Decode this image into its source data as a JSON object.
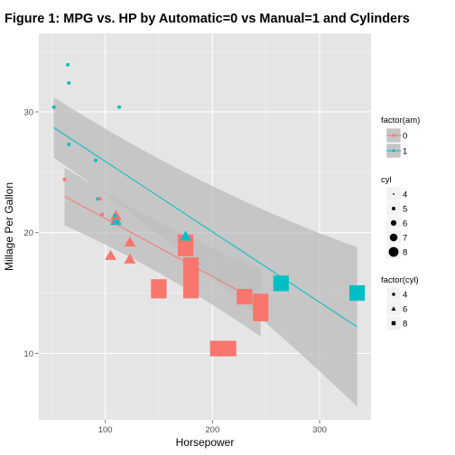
{
  "chart_data": {
    "type": "scatter",
    "title": "Figure 1: MPG vs. HP by Automatic=0 vs Manual=1 and Cylinders",
    "xlabel": "Horsepower",
    "ylabel": "Millage Per Gallon",
    "xlim": [
      38,
      348
    ],
    "ylim": [
      4.5,
      36.5
    ],
    "xticks": [
      100,
      200,
      300
    ],
    "yticks": [
      10,
      20,
      30
    ],
    "grid": true,
    "colors": {
      "am0": "#f8766d",
      "am1": "#00bfc4",
      "panel": "#e5e5e5",
      "band": "#bebebe"
    },
    "points": [
      {
        "hp": 110,
        "mpg": 21.0,
        "cyl": 6,
        "am": 1
      },
      {
        "hp": 110,
        "mpg": 21.0,
        "cyl": 6,
        "am": 1
      },
      {
        "hp": 93,
        "mpg": 22.8,
        "cyl": 4,
        "am": 1
      },
      {
        "hp": 110,
        "mpg": 21.4,
        "cyl": 6,
        "am": 0
      },
      {
        "hp": 175,
        "mpg": 18.7,
        "cyl": 8,
        "am": 0
      },
      {
        "hp": 105,
        "mpg": 18.1,
        "cyl": 6,
        "am": 0
      },
      {
        "hp": 245,
        "mpg": 14.3,
        "cyl": 8,
        "am": 0
      },
      {
        "hp": 62,
        "mpg": 24.4,
        "cyl": 4,
        "am": 0
      },
      {
        "hp": 95,
        "mpg": 22.8,
        "cyl": 4,
        "am": 0
      },
      {
        "hp": 123,
        "mpg": 19.2,
        "cyl": 6,
        "am": 0
      },
      {
        "hp": 123,
        "mpg": 17.8,
        "cyl": 6,
        "am": 0
      },
      {
        "hp": 180,
        "mpg": 16.4,
        "cyl": 8,
        "am": 0
      },
      {
        "hp": 180,
        "mpg": 17.3,
        "cyl": 8,
        "am": 0
      },
      {
        "hp": 180,
        "mpg": 15.2,
        "cyl": 8,
        "am": 0
      },
      {
        "hp": 205,
        "mpg": 10.4,
        "cyl": 8,
        "am": 0
      },
      {
        "hp": 215,
        "mpg": 10.4,
        "cyl": 8,
        "am": 0
      },
      {
        "hp": 230,
        "mpg": 14.7,
        "cyl": 8,
        "am": 0
      },
      {
        "hp": 66,
        "mpg": 32.4,
        "cyl": 4,
        "am": 1
      },
      {
        "hp": 52,
        "mpg": 30.4,
        "cyl": 4,
        "am": 1
      },
      {
        "hp": 65,
        "mpg": 33.9,
        "cyl": 4,
        "am": 1
      },
      {
        "hp": 97,
        "mpg": 21.5,
        "cyl": 4,
        "am": 0
      },
      {
        "hp": 150,
        "mpg": 15.5,
        "cyl": 8,
        "am": 0
      },
      {
        "hp": 150,
        "mpg": 15.2,
        "cyl": 8,
        "am": 0
      },
      {
        "hp": 245,
        "mpg": 13.3,
        "cyl": 8,
        "am": 0
      },
      {
        "hp": 175,
        "mpg": 19.2,
        "cyl": 8,
        "am": 0
      },
      {
        "hp": 66,
        "mpg": 27.3,
        "cyl": 4,
        "am": 1
      },
      {
        "hp": 91,
        "mpg": 26.0,
        "cyl": 4,
        "am": 1
      },
      {
        "hp": 113,
        "mpg": 30.4,
        "cyl": 4,
        "am": 1
      },
      {
        "hp": 264,
        "mpg": 15.8,
        "cyl": 8,
        "am": 1
      },
      {
        "hp": 175,
        "mpg": 19.7,
        "cyl": 6,
        "am": 1
      },
      {
        "hp": 335,
        "mpg": 15.0,
        "cyl": 8,
        "am": 1
      },
      {
        "hp": 109,
        "mpg": 21.4,
        "cyl": 4,
        "am": 1
      }
    ],
    "fits": [
      {
        "am": 0,
        "x": [
          62,
          245
        ],
        "y": [
          23.0,
          14.2
        ],
        "band_lower": [
          20.6,
          11.4
        ],
        "band_upper": [
          25.4,
          17.0
        ]
      },
      {
        "am": 1,
        "x": [
          52,
          335
        ],
        "y": [
          28.7,
          12.2
        ],
        "band_lower": [
          26.2,
          5.6
        ],
        "band_upper": [
          31.2,
          18.8
        ]
      }
    ]
  },
  "legends": {
    "am": {
      "title": "factor(am)",
      "items": [
        "0",
        "1"
      ]
    },
    "size": {
      "title": "cyl",
      "items": [
        "4",
        "5",
        "6",
        "7",
        "8"
      ]
    },
    "shape": {
      "title": "factor(cyl)",
      "items": [
        "4",
        "6",
        "8"
      ]
    }
  }
}
